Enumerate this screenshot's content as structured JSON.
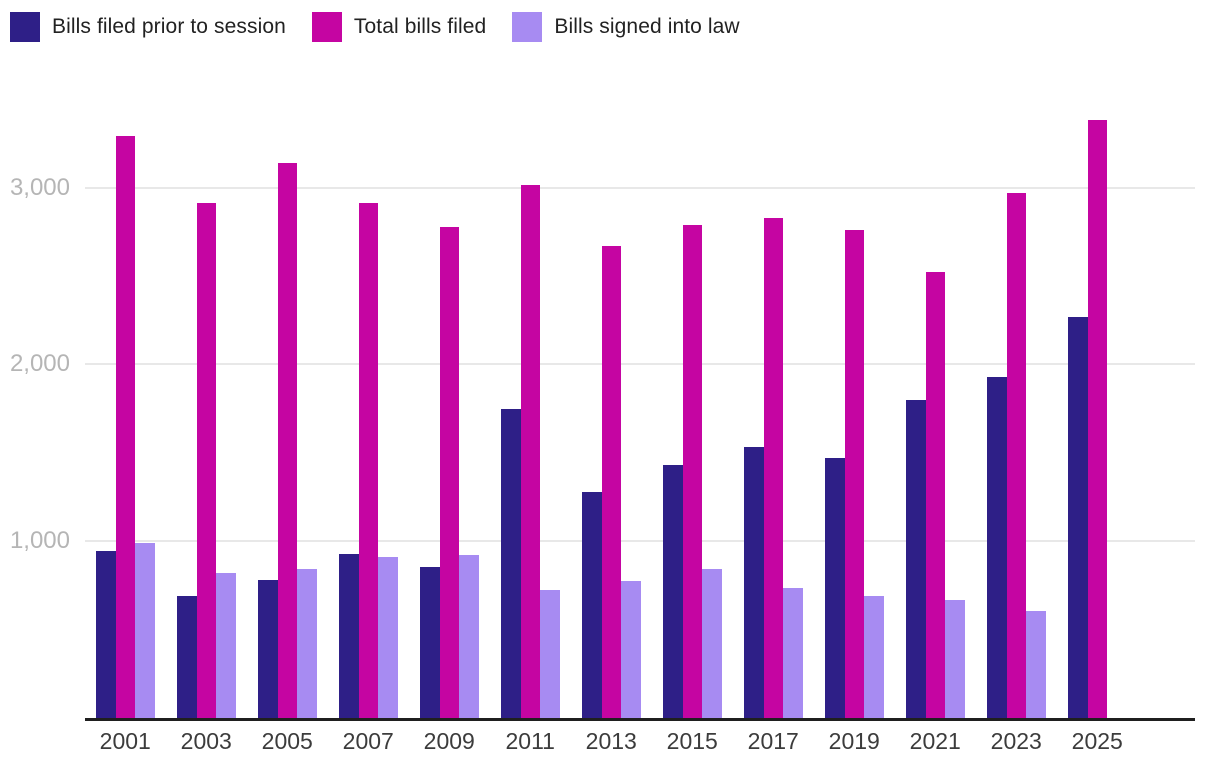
{
  "chart_data": {
    "type": "bar",
    "title": "",
    "xlabel": "",
    "ylabel": "",
    "categories": [
      "2001",
      "2003",
      "2005",
      "2007",
      "2009",
      "2011",
      "2013",
      "2015",
      "2017",
      "2019",
      "2021",
      "2023",
      "2025"
    ],
    "series": [
      {
        "name": "Bills filed prior to session",
        "color": "#2e1f87",
        "values": [
          945,
          690,
          780,
          930,
          855,
          1745,
          1280,
          1430,
          1530,
          1470,
          1800,
          1930,
          2270
        ]
      },
      {
        "name": "Total bills filed",
        "color": "#c505a2",
        "values": [
          3290,
          2910,
          3140,
          2910,
          2775,
          3015,
          2670,
          2790,
          2830,
          2760,
          2520,
          2970,
          3380
        ]
      },
      {
        "name": "Bills signed into law",
        "color": "#a78bf2",
        "values": [
          990,
          820,
          845,
          910,
          920,
          725,
          775,
          840,
          735,
          690,
          670,
          605,
          null
        ]
      }
    ],
    "y_ticks": [
      {
        "label": "1,000",
        "value": 1000
      },
      {
        "label": "2,000",
        "value": 2000
      },
      {
        "label": "3,000",
        "value": 3000
      }
    ],
    "ylim": [
      0,
      3600
    ],
    "grid": "horizontal",
    "legend_position": "top-left"
  },
  "style": {
    "grid_color": "#e8e8e8",
    "baseline_color": "#1f1f1f",
    "y_tick_color": "#b5b5b5",
    "x_tick_color": "#3c3c3c",
    "legend_text_color": "#222222"
  }
}
